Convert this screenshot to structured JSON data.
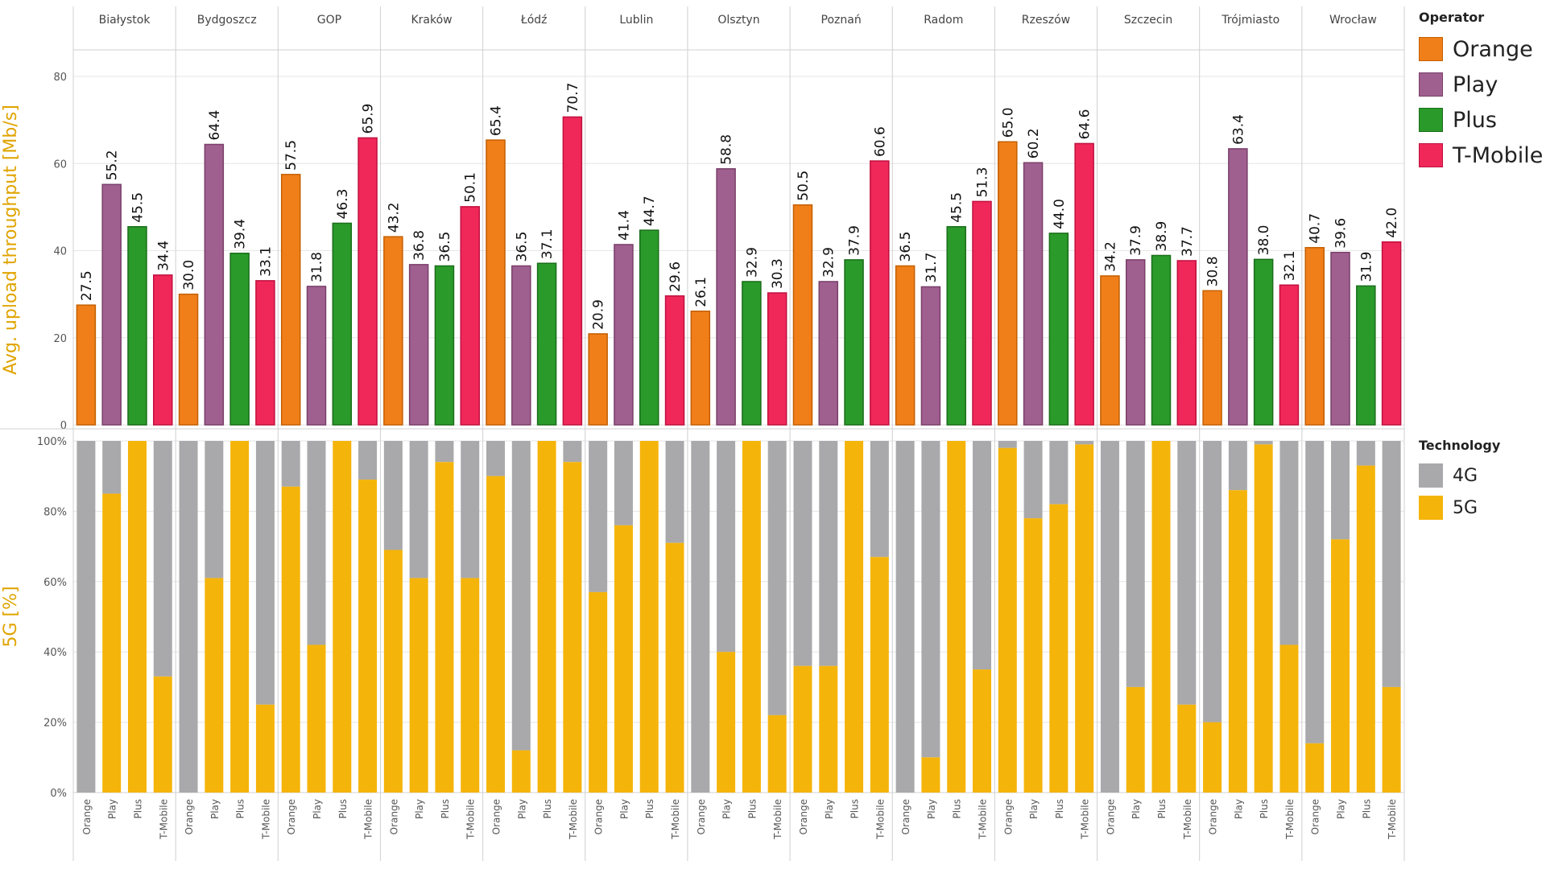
{
  "chart_data": [
    {
      "type": "bar",
      "ylabel": "Avg. upload throughput [Mb/s]",
      "ylim": [
        0,
        85
      ],
      "yticks": [
        0,
        20,
        40,
        60,
        80
      ],
      "cities": [
        "Białystok",
        "Bydgoszcz",
        "GOP",
        "Kraków",
        "Łódź",
        "Lublin",
        "Olsztyn",
        "Poznań",
        "Radom",
        "Rzeszów",
        "Szczecin",
        "Trójmiasto",
        "Wrocław"
      ],
      "series": [
        {
          "name": "Orange",
          "values": [
            27.5,
            30.0,
            57.5,
            43.2,
            65.4,
            20.9,
            26.1,
            50.5,
            36.5,
            65.0,
            34.2,
            30.8,
            40.7
          ]
        },
        {
          "name": "Play",
          "values": [
            55.2,
            64.4,
            31.8,
            36.8,
            36.5,
            41.4,
            58.8,
            32.9,
            31.7,
            60.2,
            37.9,
            63.4,
            39.6
          ]
        },
        {
          "name": "Plus",
          "values": [
            45.5,
            39.4,
            46.3,
            36.5,
            37.1,
            44.7,
            32.9,
            37.9,
            45.5,
            44.0,
            38.9,
            38.0,
            31.9
          ]
        },
        {
          "name": "T-Mobile",
          "values": [
            34.4,
            33.1,
            65.9,
            50.1,
            70.7,
            29.6,
            30.3,
            60.6,
            51.3,
            64.6,
            37.7,
            32.1,
            42.0
          ]
        }
      ],
      "data_labels": [
        [
          "27.5",
          "55.2",
          "45.5",
          "34.4"
        ],
        [
          "30.0",
          "64.4",
          "39.4",
          "33.1"
        ],
        [
          "57.5",
          "31.8",
          "46.3",
          "65.9"
        ],
        [
          "43.2",
          "36.8",
          "36.5",
          "50.1"
        ],
        [
          "65.4",
          "36.5",
          "37.1",
          "70.7"
        ],
        [
          "20.9",
          "41.4",
          "44.7",
          "29.6"
        ],
        [
          "26.1",
          "58.8",
          "32.9",
          "30.3"
        ],
        [
          "50.5",
          "32.9",
          "37.9",
          "60.6"
        ],
        [
          "36.5",
          "31.7",
          "45.5",
          "51.3"
        ],
        [
          "65.0",
          "60.2",
          "44.0",
          "64.6"
        ],
        [
          "34.2",
          "37.9",
          "38.9",
          "37.7"
        ],
        [
          "30.8",
          "63.4",
          "38.0",
          "32.1"
        ],
        [
          "40.7",
          "39.6",
          "31.9",
          "42.0"
        ]
      ]
    },
    {
      "type": "bar",
      "stacked": true,
      "ylabel": "5G [%]",
      "ylim": [
        0,
        100
      ],
      "yticks": [
        "0%",
        "20%",
        "40%",
        "60%",
        "80%",
        "100%"
      ],
      "series": [
        {
          "name": "5G",
          "values": [
            [
              0,
              85,
              100,
              33
            ],
            [
              0,
              61,
              100,
              25
            ],
            [
              87,
              42,
              100,
              89
            ],
            [
              69,
              61,
              94,
              61
            ],
            [
              90,
              12,
              100,
              94
            ],
            [
              57,
              76,
              100,
              71
            ],
            [
              0,
              40,
              100,
              22
            ],
            [
              36,
              36,
              100,
              67
            ],
            [
              0,
              10,
              100,
              35
            ],
            [
              98,
              78,
              82,
              99
            ],
            [
              0,
              30,
              100,
              25
            ],
            [
              20,
              86,
              99,
              42
            ],
            [
              14,
              72,
              93,
              30
            ]
          ]
        },
        {
          "name": "4G",
          "values": "remainder to 100%"
        }
      ]
    }
  ],
  "operators": [
    "Orange",
    "Play",
    "Plus",
    "T-Mobile"
  ],
  "legend_operator": {
    "title": "Operator",
    "items": [
      {
        "label": "Orange",
        "color": "#f07f1a"
      },
      {
        "label": "Play",
        "color": "#a0608f"
      },
      {
        "label": "Plus",
        "color": "#2a9a2a"
      },
      {
        "label": "T-Mobile",
        "color": "#f0285a"
      }
    ]
  },
  "legend_technology": {
    "title": "Technology",
    "items": [
      {
        "label": "4G",
        "color": "#a9a9ab"
      },
      {
        "label": "5G",
        "color": "#f5b40a"
      }
    ]
  },
  "colors": {
    "Orange": "#f07f1a",
    "Play": "#a0608f",
    "Plus": "#2a9a2a",
    "T-Mobile": "#f0285a",
    "4G": "#a9a9ab",
    "5G": "#f5b40a",
    "axis_title": "#e0a400",
    "grid": "#e6e6e6",
    "divider": "#d0d0d0"
  }
}
